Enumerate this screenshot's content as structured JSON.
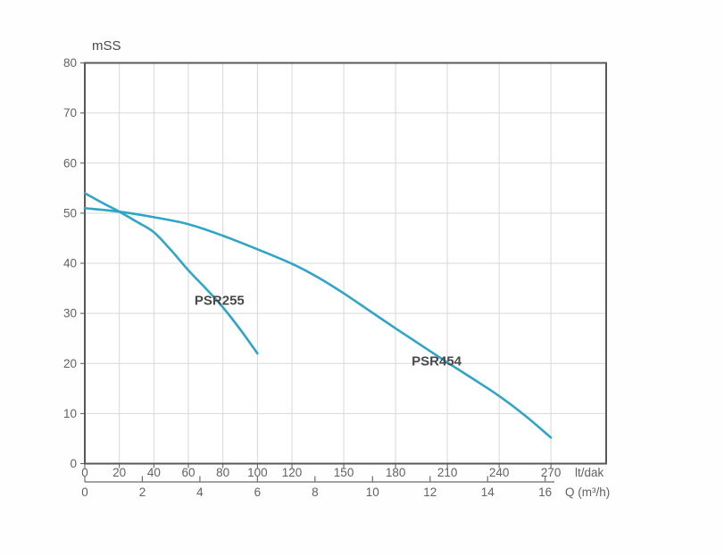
{
  "chart_data": {
    "type": "line",
    "title": "",
    "ylabel": "mSS",
    "xlabel": "lt/dak",
    "x2label": "Q (m³/h)",
    "ylim": [
      0,
      80
    ],
    "xlim": [
      0,
      302
    ],
    "y_ticks": [
      0,
      10,
      20,
      30,
      40,
      50,
      60,
      70,
      80
    ],
    "x_ticks": [
      0,
      20,
      40,
      60,
      80,
      100,
      120,
      150,
      180,
      210,
      240,
      270
    ],
    "x2_ticks": [
      0,
      2,
      4,
      6,
      8,
      10,
      12,
      14,
      16
    ],
    "x2_to_x_factor": 16.6667,
    "grid": true,
    "legend_position": "inline-labels",
    "series": [
      {
        "name": "PSR255",
        "points": [
          [
            0,
            54
          ],
          [
            10,
            52.1
          ],
          [
            20,
            50.3
          ],
          [
            30,
            48.3
          ],
          [
            40,
            46.2
          ],
          [
            50,
            42.6
          ],
          [
            60,
            38.6
          ],
          [
            70,
            35
          ],
          [
            80,
            31.2
          ],
          [
            90,
            26.8
          ],
          [
            100,
            22
          ]
        ],
        "label_at": [
          78,
          32.6
        ]
      },
      {
        "name": "PSR454",
        "points": [
          [
            0,
            51
          ],
          [
            20,
            50.3
          ],
          [
            40,
            49.2
          ],
          [
            60,
            47.8
          ],
          [
            80,
            45.5
          ],
          [
            100,
            42.8
          ],
          [
            120,
            39.9
          ],
          [
            135,
            37.2
          ],
          [
            150,
            34
          ],
          [
            165,
            30.5
          ],
          [
            180,
            27
          ],
          [
            195,
            23.6
          ],
          [
            210,
            20.2
          ],
          [
            225,
            16.9
          ],
          [
            240,
            13.5
          ],
          [
            255,
            9.6
          ],
          [
            270,
            5.2
          ]
        ],
        "label_at": [
          203.8,
          20.5
        ]
      }
    ]
  },
  "colors": {
    "curve": "#30a5c7",
    "axis": "#58595b",
    "grid": "#d7d8da",
    "secondary_axis": "#6a6b6d",
    "tick_text": "#616264",
    "label_text": "#48494b",
    "background": "#fefefe",
    "plot_background": "#ffffff"
  }
}
